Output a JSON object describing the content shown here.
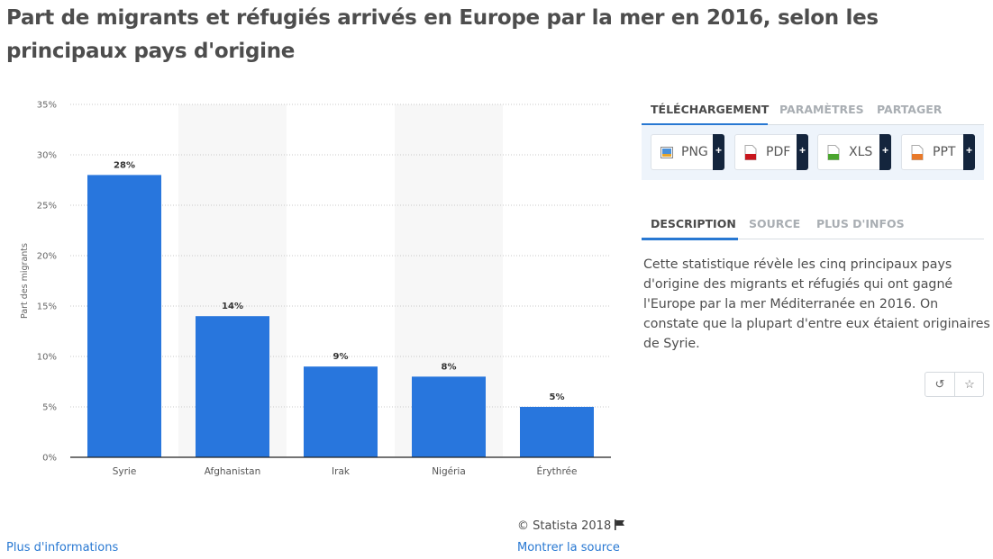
{
  "title": "Part de migrants et réfugiés arrivés en Europe par la mer en 2016, selon les principaux pays d'origine",
  "chart_data": {
    "type": "bar",
    "title": "Part de migrants et réfugiés arrivés en Europe par la mer en 2016, selon les principaux pays d'origine",
    "categories": [
      "Syrie",
      "Afghanistan",
      "Irak",
      "Nigéria",
      "Érythrée"
    ],
    "values": [
      28,
      14,
      9,
      8,
      5
    ],
    "data_labels": [
      "28%",
      "14%",
      "9%",
      "8%",
      "5%"
    ],
    "xlabel": "",
    "ylabel": "Part des migrants",
    "ylim": [
      0,
      35
    ],
    "yticks": [
      0,
      5,
      10,
      15,
      20,
      25,
      30,
      35
    ],
    "ytick_labels": [
      "0%",
      "5%",
      "10%",
      "15%",
      "20%",
      "25%",
      "30%",
      "35%"
    ],
    "grid": true,
    "bar_color": "#2876dd",
    "legend": "none"
  },
  "panel": {
    "tabs1": [
      {
        "label": "TÉLÉCHARGEMENT",
        "active": true
      },
      {
        "label": "PARAMÈTRES",
        "active": false
      },
      {
        "label": "PARTAGER",
        "active": false
      }
    ],
    "downloads": [
      {
        "label": "PNG",
        "icon": "png-file-icon",
        "color": "#e8a52a"
      },
      {
        "label": "PDF",
        "icon": "pdf-file-icon",
        "color": "#c8161d"
      },
      {
        "label": "XLS",
        "icon": "xls-file-icon",
        "color": "#4aa52e"
      },
      {
        "label": "PPT",
        "icon": "ppt-file-icon",
        "color": "#e8792a"
      }
    ],
    "plus": "+",
    "tabs2": [
      {
        "label": "DESCRIPTION",
        "active": true
      },
      {
        "label": "SOURCE",
        "active": false
      },
      {
        "label": "PLUS D'INFOS",
        "active": false
      }
    ],
    "description": "Cette statistique révèle les cinq principaux pays d'origine des migrants et réfugiés qui ont gagné l'Europe par la mer Méditerranée en 2016. On constate que la plupart d'entre eux étaient originaires de Syrie.",
    "history_icon": "↺",
    "star_icon": "☆"
  },
  "footer": {
    "copyright": "© Statista 2018",
    "more_info": "Plus d'informations",
    "show_source": "Montrer la source"
  }
}
